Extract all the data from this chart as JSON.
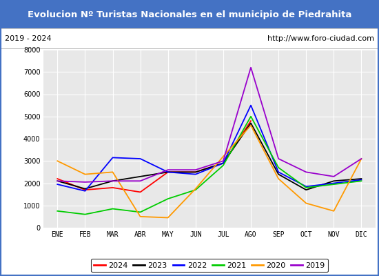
{
  "title": "Evolucion Nº Turistas Nacionales en el municipio de Piedrahita",
  "subtitle_left": "2019 - 2024",
  "subtitle_right": "http://www.foro-ciudad.com",
  "title_bg_color": "#4472c4",
  "title_text_color": "#ffffff",
  "months": [
    "ENE",
    "FEB",
    "MAR",
    "ABR",
    "MAY",
    "JUN",
    "JUL",
    "AGO",
    "SEP",
    "OCT",
    "NOV",
    "DIC"
  ],
  "ylim": [
    0,
    8000
  ],
  "yticks": [
    0,
    1000,
    2000,
    3000,
    4000,
    5000,
    6000,
    7000,
    8000
  ],
  "series": {
    "2024": {
      "color": "#ff0000",
      "data": [
        2200,
        1700,
        1800,
        1600,
        2500,
        2500,
        2900,
        4800,
        null,
        null,
        null,
        null
      ]
    },
    "2023": {
      "color": "#000000",
      "data": [
        2100,
        1750,
        2100,
        2300,
        2500,
        2500,
        2900,
        4700,
        2400,
        1700,
        2100,
        2200
      ]
    },
    "2022": {
      "color": "#0000ff",
      "data": [
        1950,
        1650,
        3150,
        3100,
        2500,
        2400,
        2900,
        5500,
        2500,
        1850,
        2000,
        2150
      ]
    },
    "2021": {
      "color": "#00cc00",
      "data": [
        750,
        600,
        850,
        700,
        1300,
        1700,
        2800,
        5000,
        2700,
        1800,
        1950,
        2100
      ]
    },
    "2020": {
      "color": "#ff9900",
      "data": [
        3000,
        2400,
        2500,
        500,
        450,
        1750,
        3200,
        4600,
        2200,
        1100,
        750,
        3100
      ]
    },
    "2019": {
      "color": "#9900cc",
      "data": [
        2100,
        2050,
        2100,
        2100,
        2600,
        2600,
        3000,
        7200,
        3100,
        2500,
        2300,
        3100
      ]
    }
  },
  "legend_order": [
    "2024",
    "2023",
    "2022",
    "2021",
    "2020",
    "2019"
  ],
  "border_color": "#4472c4"
}
